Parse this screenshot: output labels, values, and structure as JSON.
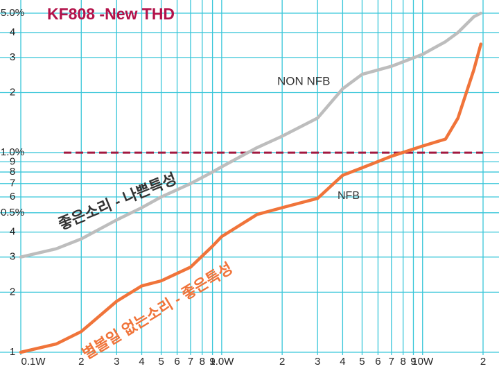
{
  "chart_data": {
    "type": "line",
    "title": "KF808 -New THD",
    "log_x": true,
    "log_y": true,
    "grid": true,
    "grid_color": "#38c6d9",
    "x": [
      0.1,
      0.15,
      0.2,
      0.3,
      0.4,
      0.5,
      0.7,
      0.9,
      1,
      1.5,
      2,
      3,
      4,
      5,
      7,
      10,
      13,
      15,
      18,
      19.5
    ],
    "series": [
      {
        "name": "NON NFB",
        "color": "#bdbdbd",
        "values": [
          0.3,
          0.33,
          0.37,
          0.46,
          0.53,
          0.6,
          0.7,
          0.8,
          0.85,
          1.06,
          1.21,
          1.49,
          2.09,
          2.47,
          2.71,
          3.11,
          3.6,
          4.0,
          4.8,
          5.0
        ]
      },
      {
        "name": "NFB",
        "color": "#f0743a",
        "values": [
          0.1,
          0.11,
          0.127,
          0.18,
          0.215,
          0.228,
          0.267,
          0.34,
          0.38,
          0.49,
          0.53,
          0.59,
          0.77,
          0.84,
          0.96,
          1.08,
          1.17,
          1.49,
          2.6,
          3.5
        ]
      }
    ],
    "hline": {
      "value": 1,
      "color": "#a0183f"
    },
    "annotations": [
      "좋은소리 - 나쁜특성",
      "별볼일 없는소리 - 좋은특성"
    ],
    "xlim": [
      0.1,
      20
    ],
    "xticks": [
      {
        "value": 0.1,
        "label": "0.1W"
      },
      {
        "value": 0.2,
        "label": "2"
      },
      {
        "value": 0.3,
        "label": "3"
      },
      {
        "value": 0.4,
        "label": "4"
      },
      {
        "value": 0.5,
        "label": "5"
      },
      {
        "value": 0.6,
        "label": "6"
      },
      {
        "value": 0.7,
        "label": "7"
      },
      {
        "value": 0.8,
        "label": "8"
      },
      {
        "value": 0.9,
        "label": "9"
      },
      {
        "value": 1,
        "label": "1.0W"
      },
      2,
      3,
      4,
      5,
      6,
      7,
      8,
      9,
      {
        "value": 10,
        "label": "10W"
      },
      {
        "value": 20,
        "label": "2"
      }
    ],
    "ylim": [
      0.1,
      5
    ],
    "yticks": [
      {
        "value": 5,
        "label": "5.0%"
      },
      4,
      3,
      2,
      {
        "value": 1,
        "label": "1.0%"
      },
      {
        "value": 0.9,
        "label": "9"
      },
      {
        "value": 0.8,
        "label": "8"
      },
      {
        "value": 0.7,
        "label": "7"
      },
      {
        "value": 0.6,
        "label": "6"
      },
      {
        "value": 0.5,
        "label": "0.5%"
      },
      {
        "value": 0.4,
        "label": "4"
      },
      {
        "value": 0.3,
        "label": "3"
      },
      {
        "value": 0.2,
        "label": "2"
      },
      {
        "value": 0.1,
        "label": "1"
      }
    ]
  }
}
